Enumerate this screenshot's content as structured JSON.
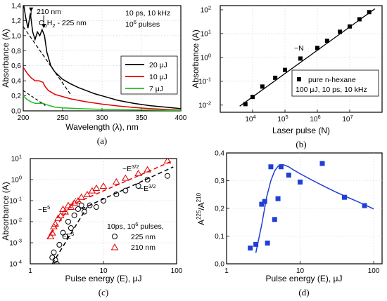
{
  "chart_data": [
    {
      "id": "a",
      "type": "line",
      "caption": "(a)",
      "xlabel": "Wavelength (λ), nm",
      "ylabel": "Absorbance (A)",
      "xlim": [
        200,
        400
      ],
      "ylim": [
        0,
        1.4
      ],
      "xticks": [
        200,
        250,
        300,
        350,
        400
      ],
      "yticks": [
        0.0,
        0.2,
        0.4,
        0.6,
        0.8,
        1.0,
        1.2,
        1.4
      ],
      "ytick_labels": [
        "0,0",
        "0,2",
        "0,4",
        "0,6",
        "0,8",
        "1,0",
        "1,2",
        "1,4"
      ],
      "grid": true,
      "legend_position": "center-right",
      "series": [
        {
          "name": "20 μJ",
          "color": "#000000",
          "x": [
            200,
            203,
            206,
            209,
            212,
            215,
            218,
            221,
            224,
            227,
            230,
            235,
            240,
            245,
            250,
            260,
            270,
            280,
            290,
            300,
            320,
            340,
            360,
            380,
            400
          ],
          "y": [
            1.45,
            1.25,
            1.1,
            1.3,
            1.05,
            0.95,
            1.05,
            1.0,
            1.08,
            1.0,
            0.78,
            0.6,
            0.52,
            0.47,
            0.42,
            0.36,
            0.31,
            0.27,
            0.23,
            0.2,
            0.14,
            0.1,
            0.07,
            0.05,
            0.03
          ]
        },
        {
          "name": "10 μJ",
          "color": "#e00000",
          "x": [
            200,
            205,
            210,
            215,
            220,
            225,
            228,
            232,
            240,
            250,
            260,
            280,
            300,
            320,
            340,
            360,
            380,
            400
          ],
          "y": [
            0.58,
            0.5,
            0.44,
            0.4,
            0.4,
            0.38,
            0.32,
            0.27,
            0.22,
            0.19,
            0.16,
            0.12,
            0.09,
            0.065,
            0.045,
            0.03,
            0.02,
            0.01
          ]
        },
        {
          "name": "7 μJ",
          "color": "#22bb22",
          "x": [
            200,
            205,
            210,
            215,
            220,
            225,
            230,
            240,
            250,
            270,
            300,
            330,
            360,
            400
          ],
          "y": [
            0.2,
            0.15,
            0.12,
            0.1,
            0.1,
            0.1,
            0.08,
            0.05,
            0.04,
            0.03,
            0.02,
            0.015,
            0.01,
            0.005
          ]
        }
      ],
      "dashed_fit": {
        "x": [
          200,
          210,
          220,
          230,
          240,
          250,
          260
        ],
        "y": [
          1.12,
          0.97,
          0.82,
          0.67,
          0.52,
          0.37,
          0.22
        ]
      },
      "dashed_fit_low": {
        "x": [
          200,
          210,
          220,
          228
        ],
        "y": [
          0.27,
          0.2,
          0.13,
          0.07
        ]
      },
      "annotations": {
        "peak": "210 nm",
        "species_prefix": "C",
        "species_sub1": "6",
        "species_mid": "H",
        "species_sub2": "2",
        "species_suffix": " - 225 nm",
        "cond1": "10 ps, 10 kHz",
        "cond2_base": "10",
        "cond2_sup": "6",
        "cond2_tail": " pulses"
      }
    },
    {
      "id": "b",
      "type": "scatter",
      "caption": "(b)",
      "xlabel": "Laser pulse (N)",
      "ylabel": "Absorbance (A)",
      "xscale": "log",
      "yscale": "log",
      "xlim": [
        1000,
        100000000
      ],
      "ylim": [
        0.005,
        150
      ],
      "xticks_exp": [
        4,
        5,
        6,
        7
      ],
      "yticks_exp": [
        -2,
        -1,
        0,
        1,
        2
      ],
      "grid": true,
      "legend_position": "bottom-right",
      "legend": {
        "entry": "pure n-hexane",
        "cond": "100 μJ, 10 ps, 10 kHz"
      },
      "slope_label": "~N",
      "points": {
        "x": [
          6000,
          10000,
          20000,
          50000,
          100000,
          300000,
          1000000,
          2000000,
          5000000,
          10000000,
          20000000,
          40000000
        ],
        "y": [
          0.011,
          0.022,
          0.06,
          0.14,
          0.3,
          0.9,
          2.5,
          5,
          12,
          20,
          40,
          80
        ]
      },
      "fit": {
        "x": [
          4000,
          60000000
        ],
        "y": [
          0.009,
          110
        ]
      }
    },
    {
      "id": "c",
      "type": "scatter",
      "caption": "(c)",
      "xlabel": "Pulse energy (E), μJ",
      "ylabel": "Absorbance (A)",
      "xscale": "log",
      "yscale": "log",
      "xlim": [
        1,
        100
      ],
      "ylim": [
        0.0001,
        10
      ],
      "xtick_labels": [
        "1",
        "10",
        "100"
      ],
      "yticks_exp": [
        -4,
        -3,
        -2,
        -1,
        0,
        1
      ],
      "grid": true,
      "legend_position": "bottom-center",
      "legend": {
        "cond_pre": "10ps, 10",
        "cond_sup": "6",
        "cond_post": " pulses,"
      },
      "series": [
        {
          "name": "225 nm",
          "marker": "circle",
          "color": "#000000",
          "x": [
            2.0,
            2.1,
            2.2,
            2.3,
            2.5,
            2.8,
            3.0,
            3.3,
            3.6,
            4.0,
            4.5,
            5.0,
            5.5,
            6.5,
            8,
            10,
            15,
            20,
            30,
            40,
            75
          ],
          "y": [
            0.0002,
            0.00035,
            0.00015,
            0.0001,
            0.0008,
            0.003,
            0.002,
            0.01,
            0.005,
            0.02,
            0.04,
            0.06,
            0.03,
            0.06,
            0.05,
            0.1,
            0.2,
            0.3,
            0.5,
            1.0,
            1.5
          ]
        },
        {
          "name": "210 nm",
          "marker": "triangle",
          "color": "#e00000",
          "x": [
            1.9,
            2.0,
            2.1,
            2.2,
            2.4,
            2.6,
            2.8,
            3.0,
            3.3,
            3.6,
            4.0,
            4.5,
            5,
            6,
            7,
            8,
            10,
            15,
            20,
            30,
            40,
            75
          ],
          "y": [
            0.002,
            0.003,
            0.006,
            0.008,
            0.015,
            0.02,
            0.04,
            0.03,
            0.06,
            0.05,
            0.08,
            0.1,
            0.15,
            0.2,
            0.3,
            0.4,
            0.5,
            0.8,
            1.2,
            2,
            3,
            8
          ]
        }
      ],
      "fits": [
        {
          "color": "#e00000",
          "x": [
            1.7,
            4.2
          ],
          "y": [
            0.0015,
            0.13
          ]
        },
        {
          "color": "#e00000",
          "x": [
            3.5,
            90
          ],
          "y": [
            0.06,
            8
          ]
        },
        {
          "color": "#000000",
          "x": [
            2.0,
            6.0
          ],
          "y": [
            0.0001,
            0.05
          ]
        },
        {
          "color": "#000000",
          "x": [
            5,
            90
          ],
          "y": [
            0.04,
            4
          ]
        }
      ],
      "labels": {
        "e32_top": "~E",
        "e32_sup": "3/2",
        "e5": "~E",
        "e5_sup": "5"
      }
    },
    {
      "id": "d",
      "type": "scatter",
      "caption": "(d)",
      "xlabel": "Pulse energy (E), μJ",
      "ylabel_base": "A",
      "ylabel_sup1": "225",
      "ylabel_mid": "/A",
      "ylabel_sup2": "210",
      "xscale": "log",
      "xlim": [
        1,
        130
      ],
      "ylim": [
        0,
        0.4
      ],
      "xtick_labels": [
        "1",
        "10",
        "100"
      ],
      "yticks": [
        0.0,
        0.1,
        0.2,
        0.3,
        0.4
      ],
      "ytick_labels": [
        "0,0",
        "0,1",
        "0,2",
        "0,3",
        "0,4"
      ],
      "grid": true,
      "points": {
        "x": [
          2.1,
          2.5,
          3.0,
          3.3,
          3.6,
          4.0,
          4.5,
          5.0,
          5.5,
          7,
          10,
          20,
          40,
          75
        ],
        "y": [
          0.057,
          0.07,
          0.215,
          0.225,
          0.075,
          0.35,
          0.16,
          0.235,
          0.35,
          0.32,
          0.295,
          0.362,
          0.24,
          0.21
        ]
      },
      "fit": {
        "x": [
          2.5,
          3,
          3.5,
          4,
          4.5,
          5,
          5.5,
          6,
          7,
          8,
          10,
          15,
          20,
          30,
          40,
          60,
          80,
          100
        ],
        "y": [
          0.04,
          0.14,
          0.24,
          0.3,
          0.335,
          0.352,
          0.358,
          0.357,
          0.35,
          0.34,
          0.325,
          0.3,
          0.283,
          0.26,
          0.245,
          0.225,
          0.21,
          0.198
        ]
      }
    }
  ]
}
